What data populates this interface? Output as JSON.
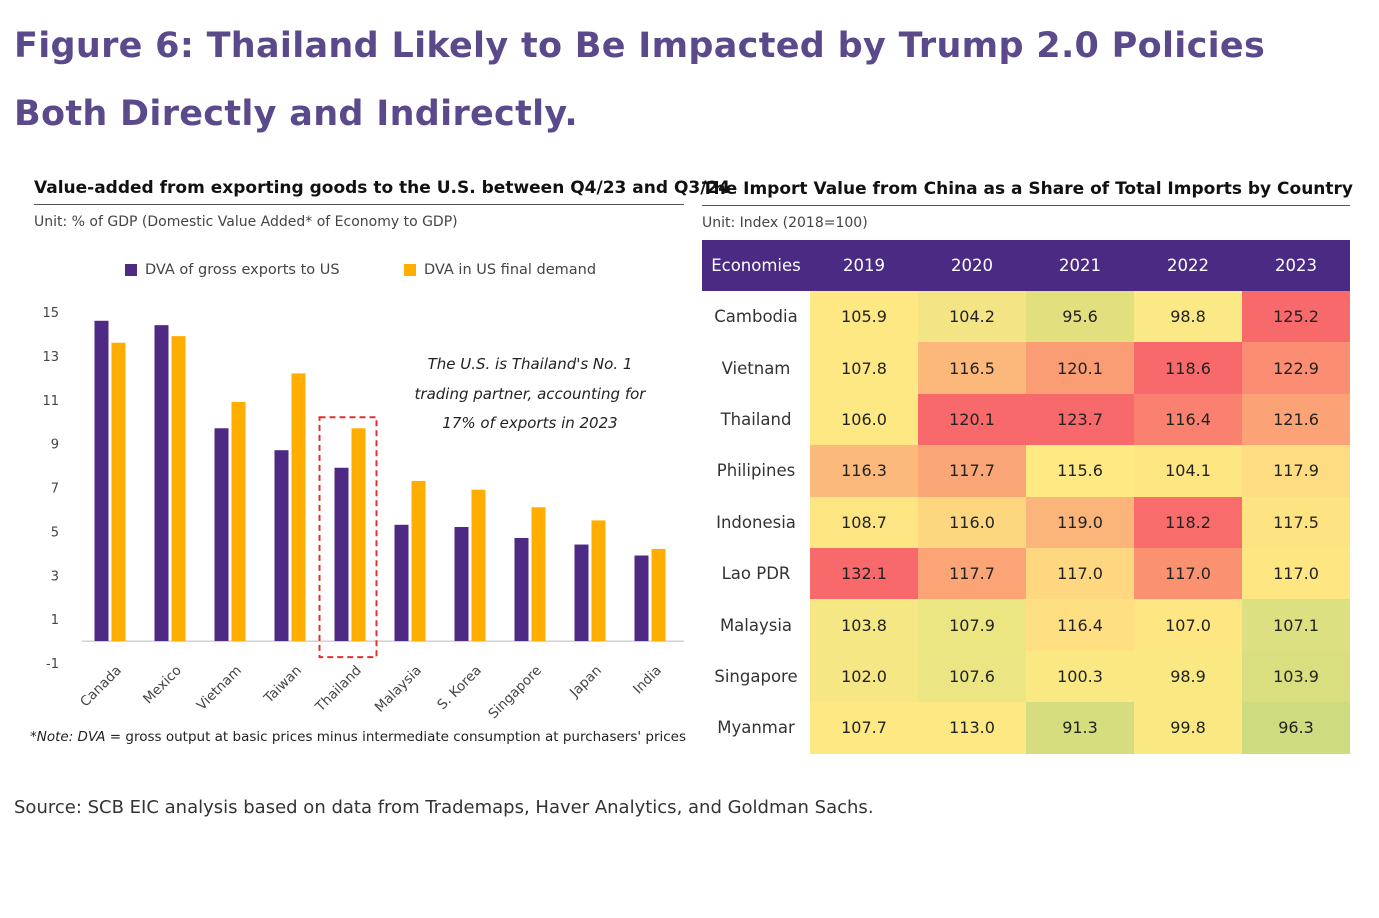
{
  "figure_title": "Figure 6: Thailand Likely to Be Impacted by Trump 2.0 Policies Both Directly and Indirectly.",
  "source": "Source: SCB EIC analysis based on data from Trademaps, Haver Analytics, and Goldman Sachs.",
  "colors": {
    "title": "#5b4a8b",
    "series1": "#4e2a84",
    "series2": "#ffae00",
    "highlight": "#e03030",
    "table_header": "#4b2a84"
  },
  "chart_data": [
    {
      "type": "bar",
      "title": "Value-added from exporting goods to the U.S. between Q4/23 and Q3/24",
      "subtitle": "Unit: % of GDP (Domestic Value Added* of Economy to GDP)",
      "categories": [
        "Canada",
        "Mexico",
        "Vietnam",
        "Taiwan",
        "Thailand",
        "Malaysia",
        "S. Korea",
        "Singapore",
        "Japan",
        "India"
      ],
      "series": [
        {
          "name": "DVA of gross exports to US",
          "color": "#4e2a84",
          "values": [
            14.6,
            14.4,
            9.7,
            8.7,
            7.9,
            5.3,
            5.2,
            4.7,
            4.4,
            3.9
          ]
        },
        {
          "name": "DVA in US final demand",
          "color": "#ffae00",
          "values": [
            13.6,
            13.9,
            10.9,
            12.2,
            9.7,
            7.3,
            6.9,
            6.1,
            5.5,
            4.2
          ]
        }
      ],
      "yticks": [
        -1,
        1,
        3,
        5,
        7,
        9,
        11,
        13,
        15
      ],
      "ylim": [
        -1,
        15
      ],
      "xlabel": "",
      "ylabel": "",
      "highlight": "Thailand",
      "annotation": [
        "The U.S. is Thailand's No. 1",
        "trading partner, accounting for",
        "17% of exports in 2023"
      ],
      "note_italic": "*Note: DVA",
      "note_rest": " = gross output at basic prices minus intermediate consumption at purchasers' prices"
    },
    {
      "type": "table",
      "title": "The Import Value from China as a Share of Total Imports by Country",
      "subtitle": "Unit: Index (2018=100)",
      "columns": [
        "Economies",
        "2019",
        "2020",
        "2021",
        "2022",
        "2023"
      ],
      "rows": [
        {
          "economy": "Cambodia",
          "values": [
            "105.9",
            "104.2",
            "95.6",
            "98.8",
            "125.2"
          ],
          "fills": [
            "#fde883",
            "#f3e485",
            "#e2df7f",
            "#fae984",
            "#f8696b"
          ]
        },
        {
          "economy": "Vietnam",
          "values": [
            "107.8",
            "116.5",
            "120.1",
            "118.6",
            "122.9"
          ],
          "fills": [
            "#fde883",
            "#fcb77a",
            "#fa9d74",
            "#f8696b",
            "#fa8d72"
          ]
        },
        {
          "economy": "Thailand",
          "values": [
            "106.0",
            "120.1",
            "123.7",
            "116.4",
            "121.6"
          ],
          "fills": [
            "#fde883",
            "#f8696b",
            "#f8696b",
            "#fa8070",
            "#fba276"
          ]
        },
        {
          "economy": "Philipines",
          "values": [
            "116.3",
            "117.7",
            "115.6",
            "104.1",
            "117.9"
          ],
          "fills": [
            "#fbba7b",
            "#fba677",
            "#fee983",
            "#fee783",
            "#fedd82"
          ]
        },
        {
          "economy": "Indonesia",
          "values": [
            "108.7",
            "116.0",
            "119.0",
            "118.2",
            "117.5"
          ],
          "fills": [
            "#fde583",
            "#fdd780",
            "#fbb479",
            "#f86d6b",
            "#fee383"
          ]
        },
        {
          "economy": "Lao PDR",
          "values": [
            "132.1",
            "117.7",
            "117.0",
            "117.0",
            "117.0"
          ],
          "fills": [
            "#f8696b",
            "#fba577",
            "#fed780",
            "#fa9272",
            "#fee683"
          ]
        },
        {
          "economy": "Malaysia",
          "values": [
            "103.8",
            "107.9",
            "116.4",
            "107.0",
            "107.1"
          ],
          "fills": [
            "#f4e784",
            "#ebe582",
            "#fee082",
            "#fee683",
            "#dde081"
          ]
        },
        {
          "economy": "Singapore",
          "values": [
            "102.0",
            "107.6",
            "100.3",
            "98.9",
            "103.9"
          ],
          "fills": [
            "#f4e784",
            "#ebe583",
            "#fae983",
            "#fae983",
            "#d9df7f"
          ]
        },
        {
          "economy": "Myanmar",
          "values": [
            "107.7",
            "113.0",
            "91.3",
            "99.8",
            "96.3"
          ],
          "fills": [
            "#fde883",
            "#fde883",
            "#d5dd7e",
            "#fae983",
            "#cedb7e"
          ]
        }
      ]
    }
  ]
}
